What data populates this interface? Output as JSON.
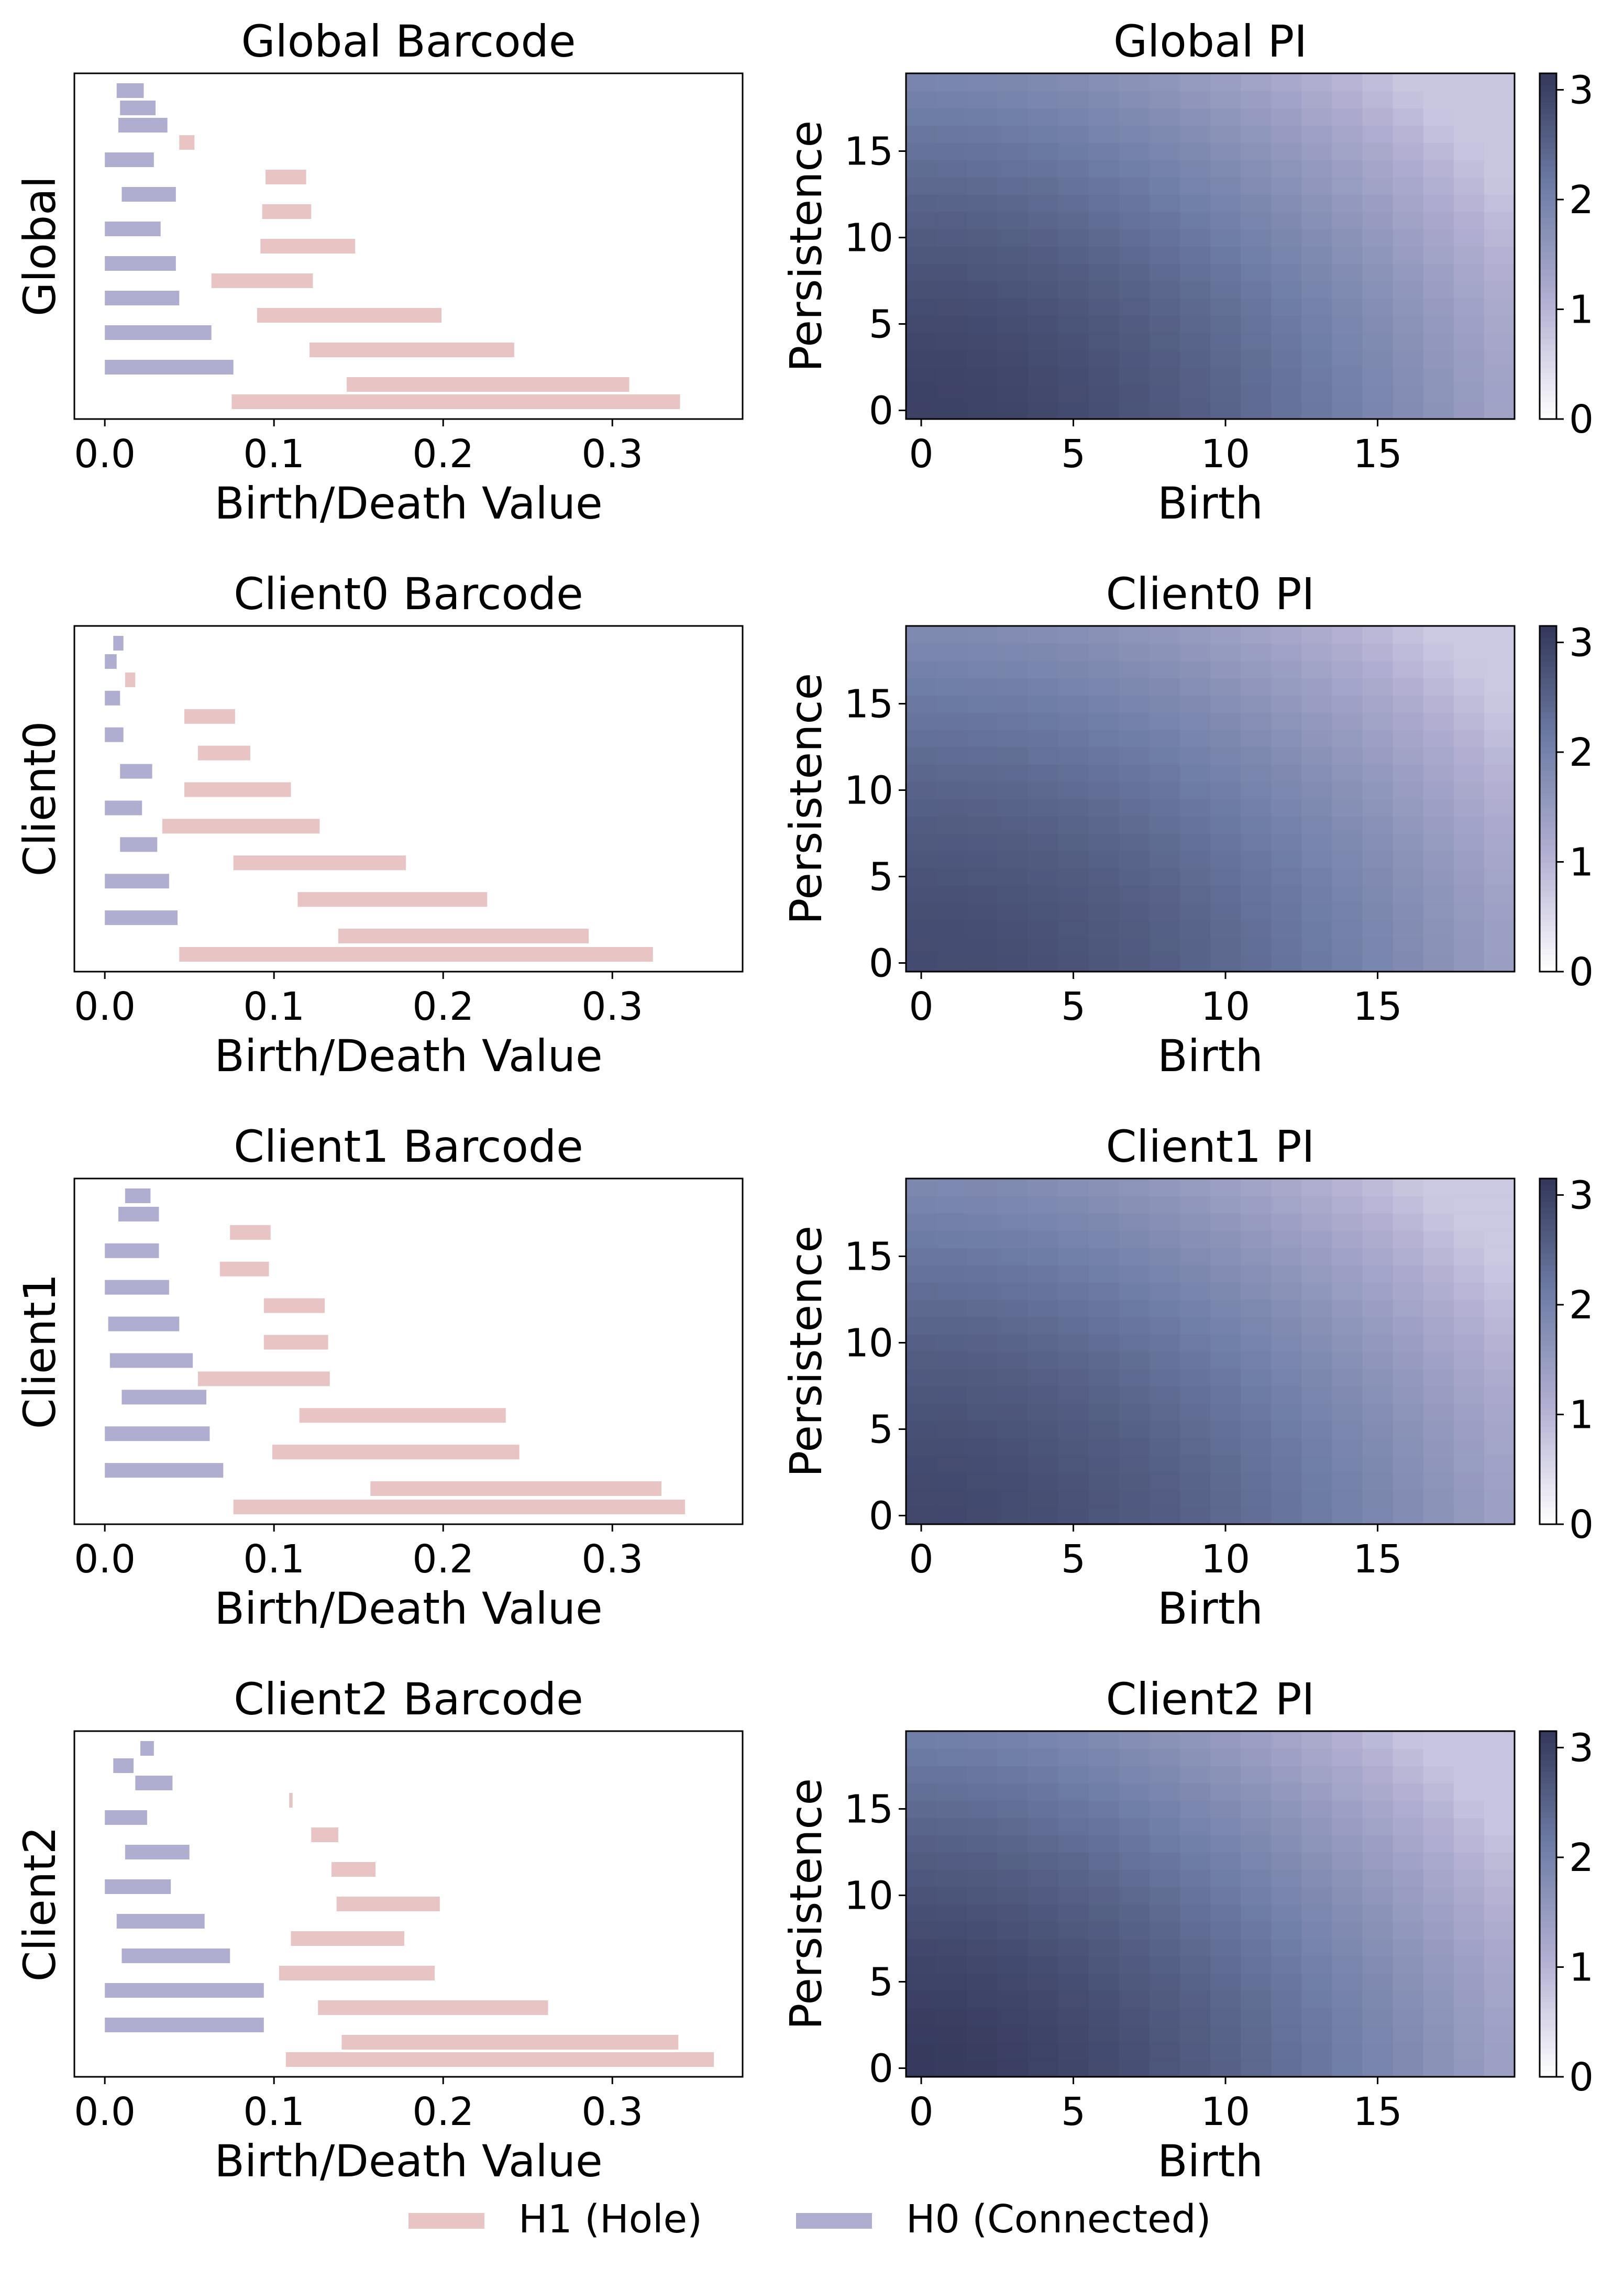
{
  "legend": {
    "placement": "bottom-center",
    "entries": [
      {
        "label": "H1 (Hole)",
        "color": "#e8c4c4"
      },
      {
        "label": "H0 (Connected)",
        "color": "#b0aed0"
      }
    ]
  },
  "colormap": {
    "stops": [
      "#ffffff",
      "#b3b0d3",
      "#6f7ea6",
      "#33375a"
    ],
    "range": [
      0,
      3.15
    ]
  },
  "chart_data": [
    {
      "type": "bar",
      "subtype": "barcode",
      "title": "Global Barcode",
      "xlabel": "Birth/Death Value",
      "ylabel": "Global",
      "xlim": [
        -0.018,
        0.377
      ],
      "xticks": [
        0.0,
        0.1,
        0.2,
        0.3
      ],
      "xtick_labels": [
        "0.0",
        "0.1",
        "0.2",
        "0.3"
      ],
      "bars": [
        {
          "dim": "H0",
          "birth": 0.007,
          "death": 0.023
        },
        {
          "dim": "H0",
          "birth": 0.009,
          "death": 0.03
        },
        {
          "dim": "H0",
          "birth": 0.008,
          "death": 0.037
        },
        {
          "dim": "H1",
          "birth": 0.044,
          "death": 0.053
        },
        {
          "dim": "H0",
          "birth": 0.0,
          "death": 0.029
        },
        {
          "dim": "H1",
          "birth": 0.095,
          "death": 0.119
        },
        {
          "dim": "H0",
          "birth": 0.01,
          "death": 0.042
        },
        {
          "dim": "H1",
          "birth": 0.093,
          "death": 0.122
        },
        {
          "dim": "H0",
          "birth": 0.0,
          "death": 0.033
        },
        {
          "dim": "H1",
          "birth": 0.092,
          "death": 0.148
        },
        {
          "dim": "H0",
          "birth": 0.0,
          "death": 0.042
        },
        {
          "dim": "H1",
          "birth": 0.063,
          "death": 0.123
        },
        {
          "dim": "H0",
          "birth": 0.0,
          "death": 0.044
        },
        {
          "dim": "H1",
          "birth": 0.09,
          "death": 0.199
        },
        {
          "dim": "H0",
          "birth": 0.0,
          "death": 0.063
        },
        {
          "dim": "H1",
          "birth": 0.121,
          "death": 0.242
        },
        {
          "dim": "H0",
          "birth": 0.0,
          "death": 0.076
        },
        {
          "dim": "H1",
          "birth": 0.143,
          "death": 0.31
        },
        {
          "dim": "H1",
          "birth": 0.075,
          "death": 0.34
        }
      ]
    },
    {
      "type": "heatmap",
      "subtype": "persistence-image",
      "title": "Global PI",
      "xlabel": "Birth",
      "ylabel": "Persistence",
      "xticks": [
        0,
        5,
        10,
        15
      ],
      "yticks": [
        0,
        5,
        10,
        15
      ],
      "grid_size": 20,
      "vmin": 0,
      "vmax": 3.15,
      "origin": "lower",
      "colorbar": {
        "ticks": [
          0,
          1,
          2,
          3
        ]
      },
      "surface": {
        "peak": 3.0,
        "x_power": 1.8,
        "y_power": 1.6,
        "x_weight": 0.55,
        "y_weight": 0.35,
        "floor": 0.25
      }
    },
    {
      "type": "bar",
      "subtype": "barcode",
      "title": "Client0 Barcode",
      "xlabel": "Birth/Death Value",
      "ylabel": "Client0",
      "xlim": [
        -0.018,
        0.377
      ],
      "xticks": [
        0.0,
        0.1,
        0.2,
        0.3
      ],
      "xtick_labels": [
        "0.0",
        "0.1",
        "0.2",
        "0.3"
      ],
      "bars": [
        {
          "dim": "H0",
          "birth": 0.005,
          "death": 0.011
        },
        {
          "dim": "H0",
          "birth": 0.0,
          "death": 0.007
        },
        {
          "dim": "H1",
          "birth": 0.012,
          "death": 0.018
        },
        {
          "dim": "H0",
          "birth": 0.0,
          "death": 0.009
        },
        {
          "dim": "H1",
          "birth": 0.047,
          "death": 0.077
        },
        {
          "dim": "H0",
          "birth": 0.0,
          "death": 0.011
        },
        {
          "dim": "H1",
          "birth": 0.055,
          "death": 0.086
        },
        {
          "dim": "H0",
          "birth": 0.009,
          "death": 0.028
        },
        {
          "dim": "H1",
          "birth": 0.047,
          "death": 0.11
        },
        {
          "dim": "H0",
          "birth": 0.0,
          "death": 0.022
        },
        {
          "dim": "H1",
          "birth": 0.034,
          "death": 0.127
        },
        {
          "dim": "H0",
          "birth": 0.009,
          "death": 0.031
        },
        {
          "dim": "H1",
          "birth": 0.076,
          "death": 0.178
        },
        {
          "dim": "H0",
          "birth": 0.0,
          "death": 0.038
        },
        {
          "dim": "H1",
          "birth": 0.114,
          "death": 0.226
        },
        {
          "dim": "H0",
          "birth": 0.0,
          "death": 0.043
        },
        {
          "dim": "H1",
          "birth": 0.138,
          "death": 0.286
        },
        {
          "dim": "H1",
          "birth": 0.044,
          "death": 0.324
        }
      ]
    },
    {
      "type": "heatmap",
      "subtype": "persistence-image",
      "title": "Client0 PI",
      "xlabel": "Birth",
      "ylabel": "Persistence",
      "xticks": [
        0,
        5,
        10,
        15
      ],
      "yticks": [
        0,
        5,
        10,
        15
      ],
      "grid_size": 20,
      "vmin": 0,
      "vmax": 3.15,
      "origin": "lower",
      "colorbar": {
        "ticks": [
          0,
          1,
          2,
          3
        ]
      },
      "surface": {
        "peak": 2.85,
        "x_power": 1.9,
        "y_power": 1.6,
        "x_weight": 0.5,
        "y_weight": 0.35,
        "floor": 0.25
      }
    },
    {
      "type": "bar",
      "subtype": "barcode",
      "title": "Client1 Barcode",
      "xlabel": "Birth/Death Value",
      "ylabel": "Client1",
      "xlim": [
        -0.018,
        0.377
      ],
      "xticks": [
        0.0,
        0.1,
        0.2,
        0.3
      ],
      "xtick_labels": [
        "0.0",
        "0.1",
        "0.2",
        "0.3"
      ],
      "bars": [
        {
          "dim": "H0",
          "birth": 0.012,
          "death": 0.027
        },
        {
          "dim": "H0",
          "birth": 0.008,
          "death": 0.032
        },
        {
          "dim": "H1",
          "birth": 0.074,
          "death": 0.098
        },
        {
          "dim": "H0",
          "birth": 0.0,
          "death": 0.032
        },
        {
          "dim": "H1",
          "birth": 0.068,
          "death": 0.097
        },
        {
          "dim": "H0",
          "birth": 0.0,
          "death": 0.038
        },
        {
          "dim": "H1",
          "birth": 0.094,
          "death": 0.13
        },
        {
          "dim": "H0",
          "birth": 0.002,
          "death": 0.044
        },
        {
          "dim": "H1",
          "birth": 0.094,
          "death": 0.132
        },
        {
          "dim": "H0",
          "birth": 0.003,
          "death": 0.052
        },
        {
          "dim": "H1",
          "birth": 0.055,
          "death": 0.133
        },
        {
          "dim": "H0",
          "birth": 0.01,
          "death": 0.06
        },
        {
          "dim": "H1",
          "birth": 0.115,
          "death": 0.237
        },
        {
          "dim": "H0",
          "birth": 0.0,
          "death": 0.062
        },
        {
          "dim": "H1",
          "birth": 0.099,
          "death": 0.245
        },
        {
          "dim": "H0",
          "birth": 0.0,
          "death": 0.07
        },
        {
          "dim": "H1",
          "birth": 0.157,
          "death": 0.329
        },
        {
          "dim": "H1",
          "birth": 0.076,
          "death": 0.343
        }
      ]
    },
    {
      "type": "heatmap",
      "subtype": "persistence-image",
      "title": "Client1 PI",
      "xlabel": "Birth",
      "ylabel": "Persistence",
      "xticks": [
        0,
        5,
        10,
        15
      ],
      "yticks": [
        0,
        5,
        10,
        15
      ],
      "grid_size": 20,
      "vmin": 0,
      "vmax": 3.15,
      "origin": "lower",
      "colorbar": {
        "ticks": [
          0,
          1,
          2,
          3
        ]
      },
      "surface": {
        "peak": 2.9,
        "x_power": 1.8,
        "y_power": 1.6,
        "x_weight": 0.52,
        "y_weight": 0.35,
        "floor": 0.25
      }
    },
    {
      "type": "bar",
      "subtype": "barcode",
      "title": "Client2 Barcode",
      "xlabel": "Birth/Death Value",
      "ylabel": "Client2",
      "xlim": [
        -0.018,
        0.377
      ],
      "xticks": [
        0.0,
        0.1,
        0.2,
        0.3
      ],
      "xtick_labels": [
        "0.0",
        "0.1",
        "0.2",
        "0.3"
      ],
      "bars": [
        {
          "dim": "H0",
          "birth": 0.021,
          "death": 0.029
        },
        {
          "dim": "H0",
          "birth": 0.005,
          "death": 0.017
        },
        {
          "dim": "H0",
          "birth": 0.018,
          "death": 0.04
        },
        {
          "dim": "H1",
          "birth": 0.109,
          "death": 0.111
        },
        {
          "dim": "H0",
          "birth": 0.0,
          "death": 0.025
        },
        {
          "dim": "H1",
          "birth": 0.122,
          "death": 0.138
        },
        {
          "dim": "H0",
          "birth": 0.012,
          "death": 0.05
        },
        {
          "dim": "H1",
          "birth": 0.134,
          "death": 0.16
        },
        {
          "dim": "H0",
          "birth": 0.0,
          "death": 0.039
        },
        {
          "dim": "H1",
          "birth": 0.137,
          "death": 0.198
        },
        {
          "dim": "H0",
          "birth": 0.007,
          "death": 0.059
        },
        {
          "dim": "H1",
          "birth": 0.11,
          "death": 0.177
        },
        {
          "dim": "H0",
          "birth": 0.01,
          "death": 0.074
        },
        {
          "dim": "H1",
          "birth": 0.103,
          "death": 0.195
        },
        {
          "dim": "H0",
          "birth": 0.0,
          "death": 0.094
        },
        {
          "dim": "H1",
          "birth": 0.126,
          "death": 0.262
        },
        {
          "dim": "H0",
          "birth": 0.0,
          "death": 0.094
        },
        {
          "dim": "H1",
          "birth": 0.14,
          "death": 0.339
        },
        {
          "dim": "H1",
          "birth": 0.107,
          "death": 0.36
        }
      ]
    },
    {
      "type": "heatmap",
      "subtype": "persistence-image",
      "title": "Client2 PI",
      "xlabel": "Birth",
      "ylabel": "Persistence",
      "xticks": [
        0,
        5,
        10,
        15
      ],
      "yticks": [
        0,
        5,
        10,
        15
      ],
      "grid_size": 20,
      "vmin": 0,
      "vmax": 3.15,
      "origin": "lower",
      "colorbar": {
        "ticks": [
          0,
          1,
          2,
          3
        ]
      },
      "surface": {
        "peak": 3.1,
        "x_power": 1.7,
        "y_power": 1.6,
        "x_weight": 0.55,
        "y_weight": 0.33,
        "floor": 0.25
      }
    }
  ]
}
